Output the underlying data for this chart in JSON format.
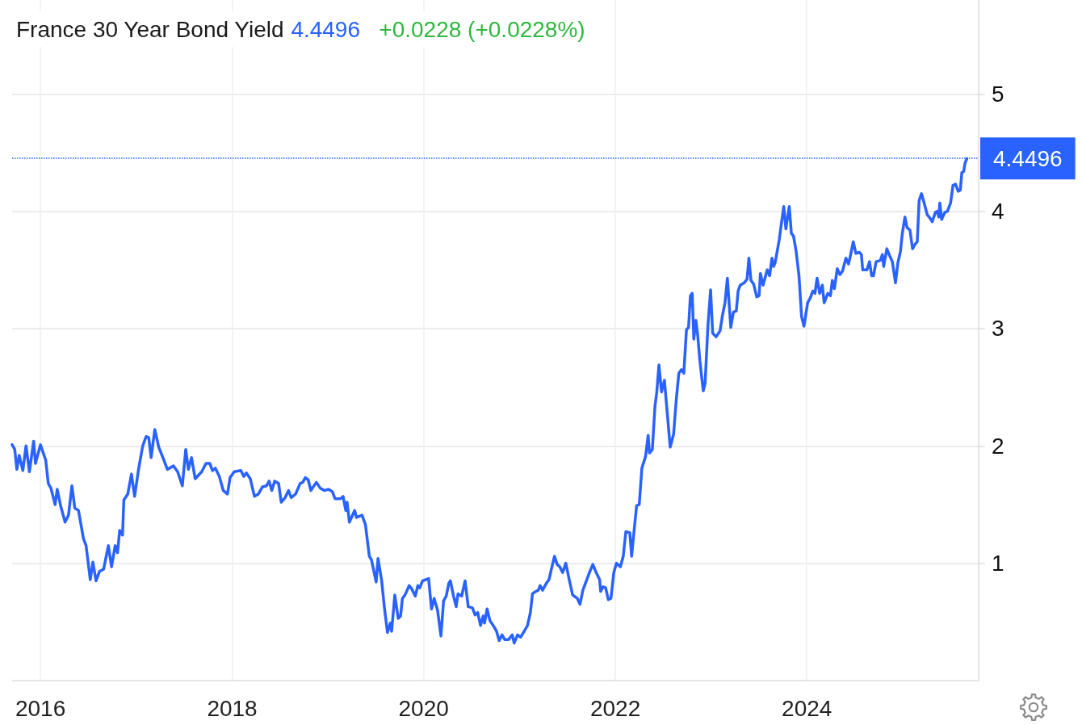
{
  "chart_data": {
    "type": "line",
    "title": "France 30 Year Bond Yield",
    "annotations": [
      "4.4496",
      "+0.0228 (+0.0228%)"
    ],
    "x": [
      "2015-09-15",
      "2015-09-25",
      "2015-10-03",
      "2015-10-12",
      "2015-10-26",
      "2015-11-07",
      "2015-11-20",
      "2015-12-06",
      "2015-12-13",
      "2016-01-01",
      "2016-01-21",
      "2016-01-31",
      "2016-02-10",
      "2016-02-26",
      "2016-03-05",
      "2016-03-18",
      "2016-04-04",
      "2016-04-17",
      "2016-04-30",
      "2016-05-11",
      "2016-05-25",
      "2016-06-13",
      "2016-06-23",
      "2016-07-09",
      "2016-07-19",
      "2016-07-31",
      "2016-08-13",
      "2016-08-29",
      "2016-09-16",
      "2016-09-28",
      "2016-10-12",
      "2016-10-21",
      "2016-10-29",
      "2016-11-09",
      "2016-11-14",
      "2016-11-29",
      "2016-12-13",
      "2016-12-25",
      "2017-01-09",
      "2017-01-25",
      "2017-02-07",
      "2017-02-17",
      "2017-02-26",
      "2017-03-12",
      "2017-03-27",
      "2017-04-12",
      "2017-04-29",
      "2017-05-22",
      "2017-06-07",
      "2017-06-25",
      "2017-07-08",
      "2017-07-18",
      "2017-07-30",
      "2017-08-13",
      "2017-09-07",
      "2017-09-23",
      "2017-10-08",
      "2017-10-18",
      "2017-10-29",
      "2017-11-13",
      "2017-11-28",
      "2017-12-14",
      "2017-12-24",
      "2018-01-09",
      "2018-02-03",
      "2018-02-14",
      "2018-02-24",
      "2018-03-11",
      "2018-03-27",
      "2018-04-11",
      "2018-04-26",
      "2018-05-12",
      "2018-05-22",
      "2018-06-01",
      "2018-06-12",
      "2018-06-27",
      "2018-07-07",
      "2018-07-22",
      "2018-08-04",
      "2018-08-14",
      "2018-08-31",
      "2018-09-17",
      "2018-09-27",
      "2018-10-07",
      "2018-10-18",
      "2018-10-28",
      "2018-11-18",
      "2018-12-03",
      "2018-12-18",
      "2019-01-03",
      "2019-01-18",
      "2019-01-28",
      "2019-02-18",
      "2019-02-28",
      "2019-03-10",
      "2019-03-15",
      "2019-03-24",
      "2019-04-13",
      "2019-04-20",
      "2019-05-11",
      "2019-05-24",
      "2019-06-08",
      "2019-06-16",
      "2019-07-04",
      "2019-07-11",
      "2019-07-25",
      "2019-08-04",
      "2019-08-16",
      "2019-08-27",
      "2019-09-01",
      "2019-09-13",
      "2019-09-26",
      "2019-10-05",
      "2019-10-12",
      "2019-10-22",
      "2019-11-07",
      "2019-11-17",
      "2019-11-30",
      "2019-12-10",
      "2019-12-17",
      "2019-12-28",
      "2020-01-09",
      "2020-01-20",
      "2020-01-31",
      "2020-02-10",
      "2020-02-23",
      "2020-03-07",
      "2020-03-17",
      "2020-03-27",
      "2020-04-06",
      "2020-04-12",
      "2020-04-24",
      "2020-05-04",
      "2020-05-11",
      "2020-05-25",
      "2020-06-07",
      "2020-06-19",
      "2020-07-05",
      "2020-07-15",
      "2020-07-25",
      "2020-08-05",
      "2020-08-15",
      "2020-08-20",
      "2020-08-30",
      "2020-09-10",
      "2020-09-25",
      "2020-10-05",
      "2020-10-15",
      "2020-10-26",
      "2020-11-05",
      "2020-11-20",
      "2020-12-04",
      "2020-12-11",
      "2020-12-24",
      "2021-01-05",
      "2021-01-21",
      "2021-01-31",
      "2021-02-11",
      "2021-02-19",
      "2021-03-03",
      "2021-03-13",
      "2021-03-20",
      "2021-03-29",
      "2021-04-13",
      "2021-04-23",
      "2021-05-02",
      "2021-05-14",
      "2021-05-24",
      "2021-06-03",
      "2021-06-14",
      "2021-06-26",
      "2021-07-09",
      "2021-07-22",
      "2021-08-09",
      "2021-08-19",
      "2021-08-30",
      "2021-09-09",
      "2021-09-24",
      "2021-10-07",
      "2021-10-20",
      "2021-11-02",
      "2021-11-06",
      "2021-11-15",
      "2021-11-25",
      "2021-12-05",
      "2021-12-15",
      "2021-12-26",
      "2022-01-05",
      "2022-01-20",
      "2022-01-31",
      "2022-02-10",
      "2022-02-25",
      "2022-03-04",
      "2022-03-13",
      "2022-03-23",
      "2022-04-02",
      "2022-04-12",
      "2022-04-26",
      "2022-05-06",
      "2022-05-11",
      "2022-05-22",
      "2022-06-01",
      "2022-06-08",
      "2022-06-16",
      "2022-06-26",
      "2022-07-07",
      "2022-07-17",
      "2022-07-29",
      "2022-08-11",
      "2022-08-21",
      "2022-08-31",
      "2022-09-10",
      "2022-09-19",
      "2022-09-29",
      "2022-10-07",
      "2022-10-14",
      "2022-10-21",
      "2022-10-27",
      "2022-11-04",
      "2022-11-11",
      "2022-11-19",
      "2022-12-02",
      "2022-12-09",
      "2022-12-20",
      "2022-12-30",
      "2023-01-07",
      "2023-01-20",
      "2023-02-04",
      "2023-02-14",
      "2023-02-23",
      "2023-03-04",
      "2023-03-17",
      "2023-03-27",
      "2023-04-07",
      "2023-04-14",
      "2023-04-22",
      "2023-05-07",
      "2023-05-18",
      "2023-05-25",
      "2023-06-02",
      "2023-06-12",
      "2023-06-24",
      "2023-07-03",
      "2023-07-08",
      "2023-07-18",
      "2023-08-03",
      "2023-08-12",
      "2023-08-21",
      "2023-08-27",
      "2023-09-02",
      "2023-09-18",
      "2023-09-25",
      "2023-10-05",
      "2023-10-13",
      "2023-10-26",
      "2023-11-03",
      "2023-11-11",
      "2023-11-21",
      "2023-12-02",
      "2023-12-12",
      "2023-12-21",
      "2024-01-04",
      "2024-01-14",
      "2024-01-24",
      "2024-02-01",
      "2024-02-09",
      "2024-02-19",
      "2024-02-29",
      "2024-03-07",
      "2024-03-21",
      "2024-03-31",
      "2024-04-07",
      "2024-04-15",
      "2024-04-26",
      "2024-05-06",
      "2024-05-16",
      "2024-05-29",
      "2024-06-08",
      "2024-06-16",
      "2024-06-26",
      "2024-07-06",
      "2024-07-19",
      "2024-07-27",
      "2024-08-01",
      "2024-08-17",
      "2024-08-27",
      "2024-09-04",
      "2024-09-11",
      "2024-09-21",
      "2024-10-07",
      "2024-10-15",
      "2024-10-20",
      "2024-11-01",
      "2024-11-12",
      "2024-11-22",
      "2024-12-04",
      "2024-12-13",
      "2024-12-23",
      "2024-12-30",
      "2025-01-09",
      "2025-01-17",
      "2025-01-28",
      "2025-02-07",
      "2025-02-17",
      "2025-02-25",
      "2025-03-04",
      "2025-03-13",
      "2025-03-22",
      "2025-04-04",
      "2025-04-15",
      "2025-04-23",
      "2025-05-05",
      "2025-05-12",
      "2025-05-18",
      "2025-05-22",
      "2025-05-29",
      "2025-06-10",
      "2025-06-20",
      "2025-07-02",
      "2025-07-11",
      "2025-07-21",
      "2025-07-31",
      "2025-08-08",
      "2025-08-14",
      "2025-08-21",
      "2025-08-26",
      "2025-09-02"
    ],
    "values": [
      2.01,
      1.97,
      1.8,
      1.92,
      1.79,
      2.0,
      1.78,
      2.04,
      1.85,
      2.01,
      1.88,
      1.68,
      1.64,
      1.5,
      1.63,
      1.49,
      1.35,
      1.41,
      1.66,
      1.47,
      1.45,
      1.21,
      1.15,
      0.86,
      1.01,
      0.85,
      0.93,
      0.95,
      1.15,
      0.97,
      1.15,
      1.09,
      1.28,
      1.24,
      1.54,
      1.59,
      1.76,
      1.57,
      1.8,
      2.0,
      2.08,
      2.07,
      1.9,
      2.14,
      1.99,
      1.9,
      1.8,
      1.83,
      1.78,
      1.66,
      1.97,
      1.8,
      1.9,
      1.72,
      1.78,
      1.85,
      1.85,
      1.79,
      1.81,
      1.74,
      1.62,
      1.59,
      1.73,
      1.78,
      1.79,
      1.74,
      1.77,
      1.72,
      1.57,
      1.59,
      1.65,
      1.66,
      1.7,
      1.62,
      1.7,
      1.68,
      1.52,
      1.56,
      1.62,
      1.56,
      1.59,
      1.68,
      1.69,
      1.73,
      1.71,
      1.62,
      1.69,
      1.64,
      1.62,
      1.63,
      1.61,
      1.55,
      1.55,
      1.57,
      1.45,
      1.52,
      1.35,
      1.45,
      1.39,
      1.41,
      1.33,
      1.06,
      1.03,
      0.84,
      1.04,
      0.85,
      0.63,
      0.41,
      0.49,
      0.42,
      0.73,
      0.53,
      0.55,
      0.7,
      0.73,
      0.81,
      0.78,
      0.72,
      0.81,
      0.79,
      0.85,
      0.86,
      0.87,
      0.61,
      0.7,
      0.6,
      0.38,
      0.68,
      0.72,
      0.83,
      0.85,
      0.72,
      0.63,
      0.74,
      0.72,
      0.85,
      0.63,
      0.62,
      0.56,
      0.58,
      0.47,
      0.55,
      0.49,
      0.61,
      0.51,
      0.46,
      0.42,
      0.34,
      0.39,
      0.35,
      0.35,
      0.39,
      0.32,
      0.39,
      0.37,
      0.43,
      0.47,
      0.58,
      0.74,
      0.76,
      0.77,
      0.81,
      0.77,
      0.83,
      0.86,
      0.95,
      1.06,
      0.99,
      0.97,
      0.92,
      1.0,
      0.86,
      0.73,
      0.7,
      0.65,
      0.77,
      0.83,
      0.92,
      0.99,
      0.92,
      0.86,
      0.76,
      0.8,
      0.79,
      0.69,
      0.7,
      0.92,
      1.0,
      0.97,
      1.06,
      1.27,
      1.26,
      1.06,
      1.27,
      1.49,
      1.5,
      1.81,
      1.91,
      2.09,
      1.94,
      1.97,
      2.34,
      2.46,
      2.69,
      2.46,
      2.56,
      2.3,
      1.99,
      2.1,
      2.39,
      2.62,
      2.65,
      2.62,
      2.99,
      3.01,
      3.28,
      3.3,
      2.91,
      3.07,
      2.94,
      2.73,
      2.47,
      2.53,
      3.03,
      3.33,
      2.96,
      2.93,
      2.98,
      3.12,
      3.22,
      3.43,
      3.01,
      3.14,
      3.15,
      3.32,
      3.37,
      3.39,
      3.42,
      3.6,
      3.41,
      3.38,
      3.27,
      3.28,
      3.47,
      3.37,
      3.5,
      3.45,
      3.6,
      3.53,
      3.56,
      3.76,
      3.88,
      4.04,
      3.85,
      4.04,
      3.81,
      3.79,
      3.66,
      3.45,
      3.1,
      3.02,
      3.22,
      3.26,
      3.32,
      3.3,
      3.43,
      3.3,
      3.37,
      3.22,
      3.3,
      3.28,
      3.41,
      3.34,
      3.51,
      3.46,
      3.49,
      3.6,
      3.55,
      3.63,
      3.74,
      3.64,
      3.65,
      3.63,
      3.5,
      3.5,
      3.57,
      3.45,
      3.45,
      3.57,
      3.58,
      3.63,
      3.53,
      3.68,
      3.62,
      3.57,
      3.39,
      3.56,
      3.66,
      3.81,
      3.95,
      3.86,
      3.84,
      3.68,
      3.72,
      3.74,
      4.09,
      4.15,
      4.08,
      3.97,
      3.94,
      3.91,
      3.99,
      4.0,
      3.95,
      4.07,
      3.93,
      3.99,
      4.0,
      4.07,
      4.22,
      4.23,
      4.17,
      4.18,
      4.33,
      4.34,
      4.41,
      4.4496
    ],
    "color": "#2962ff",
    "xlim": [
      "2015-09-15",
      "2025-10-17"
    ],
    "ylim": [
      0,
      5.8
    ],
    "xticks": [
      "2016",
      "2018",
      "2020",
      "2022",
      "2024"
    ],
    "yticks": [
      1,
      2,
      3,
      4,
      5
    ],
    "grid": true,
    "marker": "none",
    "line_style": "solid",
    "ref_lines": [
      {
        "axis": "y",
        "value": 4.4496,
        "label": "4.4496",
        "color": "#2962ff",
        "line_style": "dotted"
      }
    ]
  }
}
